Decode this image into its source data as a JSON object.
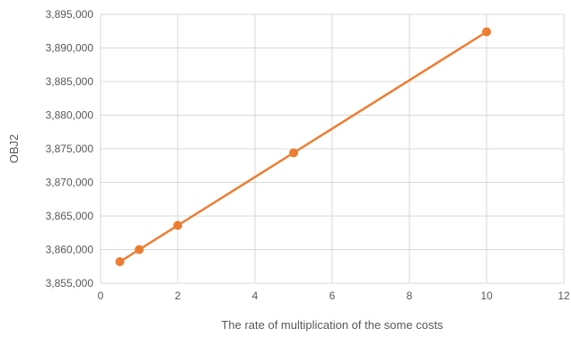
{
  "chart_data": {
    "type": "line",
    "xlabel": "The rate of multiplication of the some costs",
    "ylabel": "OBJ2",
    "xlim": [
      0,
      12
    ],
    "ylim": [
      3855000,
      3895000
    ],
    "x_ticks": [
      0,
      2,
      4,
      6,
      8,
      10,
      12
    ],
    "y_ticks": [
      3855000,
      3860000,
      3865000,
      3870000,
      3875000,
      3880000,
      3885000,
      3890000,
      3895000
    ],
    "x_tick_labels": [
      "0",
      "2",
      "4",
      "6",
      "8",
      "10",
      "12"
    ],
    "y_tick_labels": [
      "3,855,000",
      "3,860,000",
      "3,865,000",
      "3,870,000",
      "3,875,000",
      "3,880,000",
      "3,885,000",
      "3,890,000",
      "3,895,000"
    ],
    "grid": true,
    "series": [
      {
        "color": "#ED7D31",
        "marker": "circle",
        "x": [
          0.5,
          1,
          2,
          5,
          10
        ],
        "y": [
          3858200,
          3860000,
          3863600,
          3874400,
          3892400
        ]
      }
    ]
  }
}
